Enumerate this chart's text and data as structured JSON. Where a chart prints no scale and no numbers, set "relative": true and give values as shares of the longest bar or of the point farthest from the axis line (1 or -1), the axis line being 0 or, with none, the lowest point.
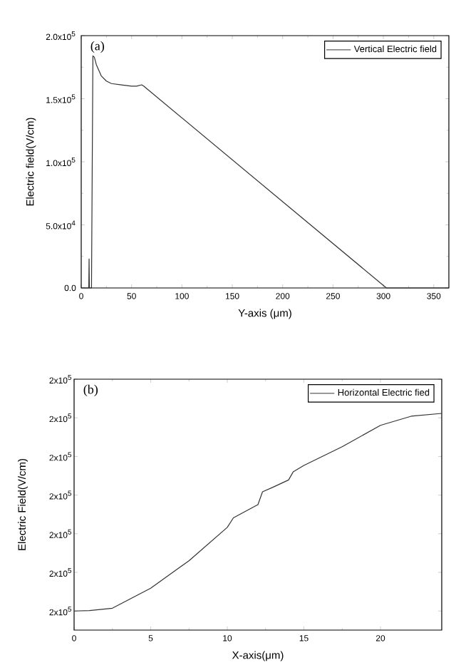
{
  "chart_data": [
    {
      "type": "line",
      "xlabel": "Y-axis (μm)",
      "ylabel": "Electric field(V/cm)",
      "annotations": [
        "(a)"
      ],
      "series": [
        {
          "name": "Vertical Electric field",
          "color": "#333333",
          "x": [
            0,
            7.5,
            7.8,
            8.1,
            10.2,
            11.6,
            13,
            15,
            20,
            25,
            30,
            40,
            50,
            55,
            60,
            62,
            303,
            365
          ],
          "values": [
            0,
            0,
            23000,
            0,
            0,
            184000,
            183000,
            177000,
            168000,
            164000,
            162000,
            161000,
            160000,
            160000,
            161000,
            160000,
            0,
            0
          ]
        }
      ],
      "xlim": [
        0,
        365
      ],
      "xticks": [
        0,
        50,
        100,
        150,
        200,
        250,
        300,
        350
      ],
      "ylim": [
        0,
        200000
      ],
      "yticks": [
        {
          "value": 0,
          "label": "0.0"
        },
        {
          "value": 50000,
          "label": "5.0x10$^{4}$"
        },
        {
          "value": 100000,
          "label": "1.0x10$^{5}$"
        },
        {
          "value": 150000,
          "label": "1.5x10$^{5}$"
        },
        {
          "value": 200000,
          "label": "2.0x10$^{5}$"
        }
      ],
      "legend": "top right",
      "grid": false,
      "marker": "none",
      "line_style": "solid"
    },
    {
      "type": "line",
      "xlabel": "X-axis(μm)",
      "ylabel": "Electric Field(V/cm)",
      "annotations": [
        "(b)",
        "2x10$^{5}$",
        "2x10$^{5}$",
        "2x10$^{5}$",
        "2x10$^{5}$",
        "2x10$^{5}$",
        "2x10$^{5}$",
        "2x10$^{5}$"
      ],
      "relative": true,
      "series": [
        {
          "name": "Horizontal Electric fied",
          "color": "#333333",
          "x": [
            0,
            1,
            2.5,
            5,
            7.5,
            10,
            10.4,
            11.5,
            12,
            12.3,
            13,
            14,
            14.3,
            15,
            17.5,
            20,
            22,
            24
          ],
          "values": [
            0.088,
            0.09,
            0.101,
            0.193,
            0.32,
            0.474,
            0.518,
            0.56,
            0.579,
            0.638,
            0.66,
            0.693,
            0.73,
            0.76,
            0.846,
            0.945,
            0.987,
            1.0
          ]
        }
      ],
      "xlim": [
        0,
        24
      ],
      "xticks": [
        0,
        5,
        10,
        15,
        20
      ],
      "legend": "top right",
      "grid": false,
      "marker": "none",
      "line_style": "solid"
    }
  ]
}
